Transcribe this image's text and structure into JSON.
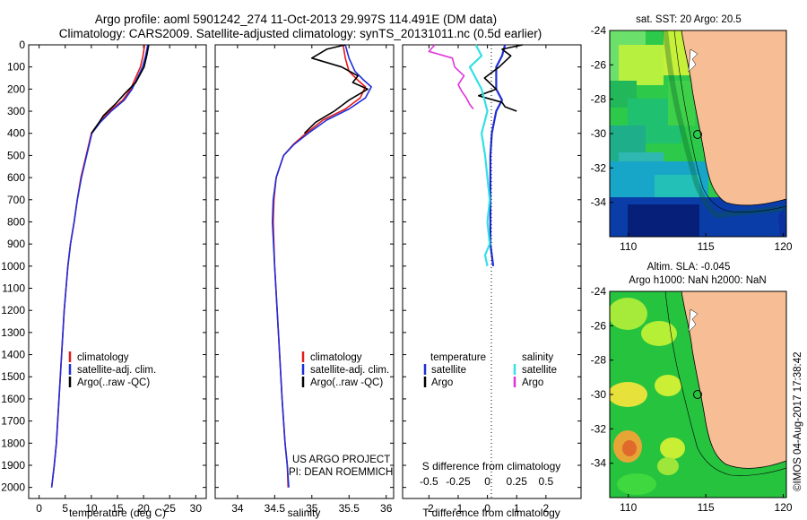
{
  "title": {
    "line1": "Argo profile: aoml 5901242_274 11-Oct-2013 29.997S 114.491E (DM data)",
    "line2": "Climatology: CARS2009. Satellite-adjusted climatology: synTS_20131011.nc (0.5d earlier)"
  },
  "colors": {
    "climatology": "#e41a1c",
    "satellite_adj": "#1f2ed8",
    "argo": "#000000",
    "sal_satellite": "#33e0e6",
    "sal_argo": "#e033d8",
    "land": "#f7be96"
  },
  "depth_ticks": [
    "0",
    "100",
    "200",
    "300",
    "400",
    "500",
    "600",
    "700",
    "800",
    "900",
    "1000",
    "1100",
    "1200",
    "1300",
    "1400",
    "1500",
    "1600",
    "1700",
    "1800",
    "1900",
    "2000"
  ],
  "legend_profile": [
    "climatology",
    "satellite-adj. clim.",
    "Argo(..raw -QC)"
  ],
  "project": {
    "line1": "US ARGO PROJECT",
    "line2": "PI: DEAN ROEMMICH"
  },
  "diff_legend": {
    "temp_header": "temperature",
    "sal_header": "salinity",
    "temp_items": [
      "satellite",
      "Argo"
    ],
    "sal_items": [
      "satellite",
      "Argo"
    ]
  },
  "map_top": {
    "title": "sat. SST: 20 Argo: 20.5",
    "yticks": [
      "-24",
      "-26",
      "-28",
      "-30",
      "-32",
      "-34"
    ],
    "xticks": [
      "110",
      "115",
      "120"
    ]
  },
  "map_bottom": {
    "title1": "Altim. SLA: -0.045",
    "title2": "Argo h1000: NaN h2000: NaN",
    "yticks": [
      "-24",
      "-26",
      "-28",
      "-30",
      "-32",
      "-34"
    ],
    "xticks": [
      "110",
      "115",
      "120"
    ]
  },
  "stamp": "©IMOS 04-Aug-2017 17:38:42",
  "chart_data": [
    {
      "type": "line",
      "xlabel": "temperature (deg C)",
      "ylabel": "",
      "xlim": [
        -2,
        32
      ],
      "ylim": [
        2050,
        0
      ],
      "xticks": [
        "0",
        "5",
        "10",
        "15",
        "20",
        "25",
        "30"
      ],
      "series": [
        {
          "name": "climatology",
          "x": [
            20.2,
            19.9,
            19.4,
            17.5,
            16.0,
            13.5,
            11.5,
            10.0,
            9.0,
            8.0,
            7.3,
            6.7,
            6.0,
            5.5,
            4.8,
            4.3,
            3.8,
            3.3,
            2.9,
            2.4
          ],
          "depth": [
            0,
            50,
            100,
            200,
            250,
            300,
            350,
            400,
            500,
            600,
            700,
            800,
            900,
            1000,
            1200,
            1400,
            1600,
            1800,
            1900,
            2000
          ]
        },
        {
          "name": "satellite-adj. clim.",
          "x": [
            20.8,
            20.4,
            19.8,
            17.8,
            16.3,
            13.8,
            11.7,
            10.1,
            9.1,
            8.1,
            7.3,
            6.7,
            6.0,
            5.5,
            4.8,
            4.3,
            3.8,
            3.3,
            2.9,
            2.4
          ],
          "depth": [
            0,
            50,
            100,
            200,
            250,
            300,
            350,
            400,
            500,
            600,
            700,
            800,
            900,
            1000,
            1200,
            1400,
            1600,
            1800,
            1900,
            2000
          ]
        },
        {
          "name": "Argo(..raw -QC)",
          "x": [
            21.0,
            20.6,
            20.1,
            18.5,
            16.4,
            14.5,
            12.3,
            11.2,
            10.0
          ],
          "depth": [
            0,
            50,
            100,
            170,
            220,
            270,
            320,
            360,
            400
          ]
        }
      ]
    },
    {
      "type": "line",
      "xlabel": "salinity",
      "ylabel": "",
      "xlim": [
        33.7,
        36.1
      ],
      "ylim": [
        2050,
        0
      ],
      "xticks": [
        "34",
        "34.5",
        "35",
        "35.5",
        "36"
      ],
      "series": [
        {
          "name": "climatology",
          "x": [
            35.42,
            35.45,
            35.5,
            35.62,
            35.72,
            35.65,
            35.45,
            35.15,
            34.92,
            34.75,
            34.62,
            34.52,
            34.49,
            34.48,
            34.5,
            34.55,
            34.6,
            34.64,
            34.67,
            34.68
          ],
          "depth": [
            0,
            60,
            120,
            160,
            190,
            240,
            290,
            340,
            400,
            450,
            500,
            600,
            700,
            800,
            1000,
            1300,
            1600,
            1800,
            1900,
            2000
          ]
        },
        {
          "name": "satellite-adj. clim.",
          "x": [
            35.45,
            35.5,
            35.58,
            35.7,
            35.8,
            35.72,
            35.5,
            35.2,
            34.95,
            34.76,
            34.62,
            34.52,
            34.48,
            34.47,
            34.5,
            34.55,
            34.6,
            34.64,
            34.67,
            34.69
          ],
          "depth": [
            0,
            60,
            120,
            160,
            190,
            240,
            290,
            340,
            400,
            450,
            500,
            600,
            700,
            800,
            1000,
            1300,
            1600,
            1800,
            1900,
            2000
          ]
        },
        {
          "name": "Argo(..raw -QC)",
          "x": [
            35.45,
            35.2,
            35.0,
            35.4,
            35.62,
            35.55,
            35.75,
            35.5,
            35.3,
            35.05,
            34.9
          ],
          "depth": [
            0,
            20,
            60,
            100,
            140,
            170,
            200,
            250,
            300,
            350,
            400
          ]
        }
      ]
    },
    {
      "type": "line",
      "xlabel": "T difference from climatology",
      "ylabel": "",
      "xlim": [
        -2.9,
        3.2
      ],
      "ylim": [
        2050,
        0
      ],
      "xticks": [
        "-2",
        "-1",
        "0",
        "1",
        "2"
      ],
      "secondary_xlabel": "S difference from climatology",
      "secondary_xticks": [
        "-0.5",
        "-0.25",
        "0",
        "0.25",
        "0.5"
      ],
      "zero_line": true,
      "series": [
        {
          "name": "satellite",
          "x": [
            0.6,
            0.5,
            0.3,
            0.3,
            0.5,
            0.3,
            0.15,
            0.1,
            0.1,
            0.1,
            0.1,
            0.1,
            0.15,
            0.2
          ],
          "depth": [
            0,
            50,
            100,
            200,
            250,
            300,
            400,
            500,
            600,
            700,
            800,
            900,
            950,
            1000
          ]
        },
        {
          "name": "Argo",
          "x": [
            1.2,
            0.5,
            0.8,
            0.4,
            -0.1,
            0.3,
            -0.3,
            0.5,
            0.6,
            1.0
          ],
          "depth": [
            0,
            20,
            50,
            100,
            150,
            200,
            230,
            260,
            280,
            300
          ]
        },
        {
          "name": "satellite",
          "x": [
            -0.1,
            -0.05,
            -0.15,
            -0.05,
            0.0,
            -0.05,
            -0.02,
            0.0,
            0.02,
            0.0,
            0.02,
            -0.02,
            0.0
          ],
          "depth": [
            0,
            50,
            100,
            200,
            300,
            400,
            500,
            600,
            700,
            800,
            900,
            950,
            1000
          ]
        },
        {
          "name": "Argo",
          "x": [
            -0.45,
            -0.5,
            -0.3,
            -0.28,
            -0.2,
            -0.25,
            -0.22,
            -0.18,
            -0.15,
            -0.12
          ],
          "depth": [
            0,
            30,
            60,
            100,
            140,
            180,
            210,
            240,
            270,
            290
          ]
        }
      ]
    }
  ]
}
